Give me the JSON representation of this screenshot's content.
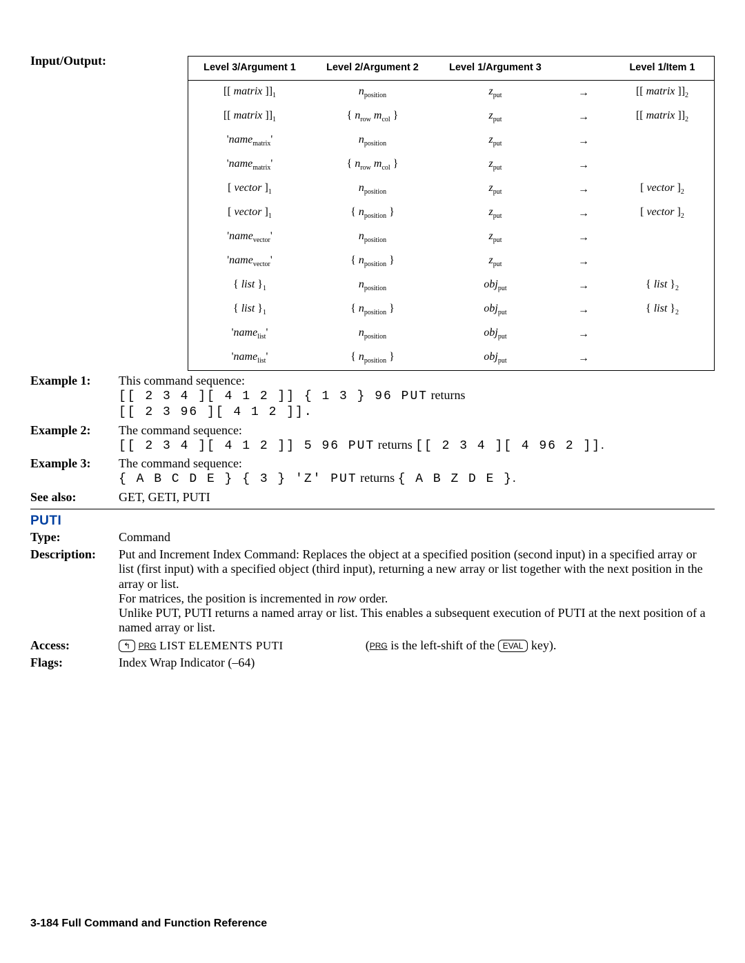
{
  "io_heading": "Input/Output:",
  "table": {
    "headers": [
      "Level 3/Argument 1",
      "Level 2/Argument 2",
      "Level 1/Argument 3",
      "",
      "Level 1/Item 1"
    ],
    "rows": [
      {
        "c1": "[[ <i>matrix</i> ]]<sub>1</sub>",
        "c2": "<i>n</i><sub>position</sub>",
        "c3": "<i>z</i><sub>put</sub>",
        "c5": "[[ <i>matrix</i> ]]<sub>2</sub>"
      },
      {
        "c1": "[[ <i>matrix</i> ]]<sub>1</sub>",
        "c2": "{ <i>n</i><sub>row</sub> <i>m</i><sub>col</sub> }",
        "c3": "<i>z</i><sub>put</sub>",
        "c5": "[[ <i>matrix</i> ]]<sub>2</sub>"
      },
      {
        "c1": "'<i>name</i><sub>matrix</sub>'",
        "c2": "<i>n</i><sub>position</sub>",
        "c3": "<i>z</i><sub>put</sub>",
        "c5": ""
      },
      {
        "c1": "'<i>name</i><sub>matrix</sub>'",
        "c2": "{ <i>n</i><sub>row</sub> <i>m</i><sub>col</sub> }",
        "c3": "<i>z</i><sub>put</sub>",
        "c5": ""
      },
      {
        "c1": "[ <i>vector</i> ]<sub>1</sub>",
        "c2": "<i>n</i><sub>position</sub>",
        "c3": "<i>z</i><sub>put</sub>",
        "c5": "[ <i>vector</i> ]<sub>2</sub>"
      },
      {
        "c1": "[ <i>vector</i> ]<sub>1</sub>",
        "c2": "{ <i>n</i><sub>position</sub> }",
        "c3": "<i>z</i><sub>put</sub>",
        "c5": "[ <i>vector</i> ]<sub>2</sub>"
      },
      {
        "c1": "'<i>name</i><sub>vector</sub>'",
        "c2": "<i>n</i><sub>position</sub>",
        "c3": "<i>z</i><sub>put</sub>",
        "c5": ""
      },
      {
        "c1": "'<i>name</i><sub>vector</sub>'",
        "c2": "{ <i>n</i><sub>position</sub> }",
        "c3": "<i>z</i><sub>put</sub>",
        "c5": ""
      },
      {
        "c1": "{ <i>list</i> }<sub>1</sub>",
        "c2": "<i>n</i><sub>position</sub>",
        "c3": "<i>obj</i><sub>put</sub>",
        "c5": "{ <i>list</i> }<sub>2</sub>"
      },
      {
        "c1": "{ <i>list</i> }<sub>1</sub>",
        "c2": "{ <i>n</i><sub>position</sub> }",
        "c3": "<i>obj</i><sub>put</sub>",
        "c5": "{ <i>list</i> }<sub>2</sub>"
      },
      {
        "c1": "'<i>name</i><sub>list</sub>'",
        "c2": "<i>n</i><sub>position</sub>",
        "c3": "<i>obj</i><sub>put</sub>",
        "c5": ""
      },
      {
        "c1": "'<i>name</i><sub>list</sub>'",
        "c2": "{ <i>n</i><sub>position</sub> }",
        "c3": "<i>obj</i><sub>put</sub>",
        "c5": ""
      }
    ],
    "arrow": "→"
  },
  "ex1_label": "Example 1:",
  "ex1_intro": "This command sequence:",
  "ex1_line1": "[[ 2 3 4 ][ 4 1 2 ]] { 1 3 } 96 PUT",
  "ex1_ret": " returns",
  "ex1_line2": "[[ 2 3 96 ][ 4 1 2 ]].",
  "ex2_label": "Example 2:",
  "ex2_intro": "The command sequence:",
  "ex2_line": "[[ 2 3 4 ][ 4 1 2 ]] 5 96 PUT",
  "ex2_mid": " returns ",
  "ex2_res": "[[ 2 3 4 ][ 4 96 2 ]]",
  "ex2_end": ".",
  "ex3_label": "Example 3:",
  "ex3_intro": "The command sequence:",
  "ex3_line": "{ A B C D E } { 3 } 'Z' PUT",
  "ex3_mid": " returns ",
  "ex3_res": "{ A B Z D E }",
  "ex3_end": ".",
  "see_label": "See also:",
  "see_body": "GET, GETI, PUTI",
  "cmd_name": "PUTI",
  "type_label": "Type:",
  "type_body": "Command",
  "desc_label": "Description:",
  "desc_p1": "Put and Increment Index Command: Replaces the object at a specified position (second input) in a specified array or list (first input) with a specified object (third input), returning a new array or list together with the next position in the array or list.",
  "desc_p2a": "For matrices, the position is incremented in ",
  "desc_p2i": "row",
  "desc_p2b": " order.",
  "desc_p3": "Unlike PUT, PUTI returns a named array or list. This enables a subsequent execution of PUTI at the next position of a named array or list.",
  "access_label": "Access:",
  "access_key1": "↰",
  "access_prg": "PRG",
  "access_menu": " LIST ELEMENTS PUTI",
  "access_note_a": "(",
  "access_note_b": " is the left-shift of the ",
  "access_eval": "EVAL",
  "access_note_c": " key).",
  "flags_label": "Flags:",
  "flags_body": "Index Wrap Indicator (–64)",
  "footer": "3-184   Full Command and Function Reference"
}
